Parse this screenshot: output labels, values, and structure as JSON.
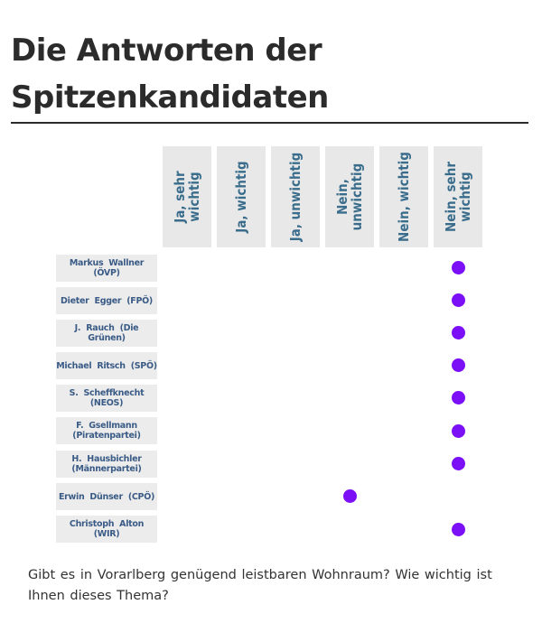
{
  "page": {
    "heading": "Die Antworten der Spitzenkandidaten",
    "question": "Gibt es in Vorarlberg genügend leistbaren Wohnraum? Wie wichtig ist Ihnen dieses Thema?"
  },
  "columns": [
    "Ja, sehr wichtig",
    "Ja, wichtig",
    "Ja, unwichtig",
    "Nein, unwichtig",
    "Nein, wichtig",
    "Nein, sehr wichtig"
  ],
  "candidates": [
    {
      "name": "Markus Wallner (ÖVP)",
      "answer_index": 5
    },
    {
      "name": "Dieter Egger (FPÖ)",
      "answer_index": 5
    },
    {
      "name": "J. Rauch (Die Grünen)",
      "answer_index": 5
    },
    {
      "name": "Michael Ritsch (SPÖ)",
      "answer_index": 5
    },
    {
      "name": "S. Scheffknecht (NEOS)",
      "answer_index": 5
    },
    {
      "name": "F. Gsellmann (Piratenpartei)",
      "answer_index": 5
    },
    {
      "name": "H. Hausbichler (Männerpartei)",
      "answer_index": 5
    },
    {
      "name": "Erwin Dünser (CPÖ)",
      "answer_index": 3
    },
    {
      "name": "Christoph Alton (WIR)",
      "answer_index": 5
    }
  ],
  "colors": {
    "dot": "#7b0ff5",
    "column_text": "#3a6d8c",
    "row_text": "#3a5b86",
    "cell_background": "#e8e8e8"
  }
}
